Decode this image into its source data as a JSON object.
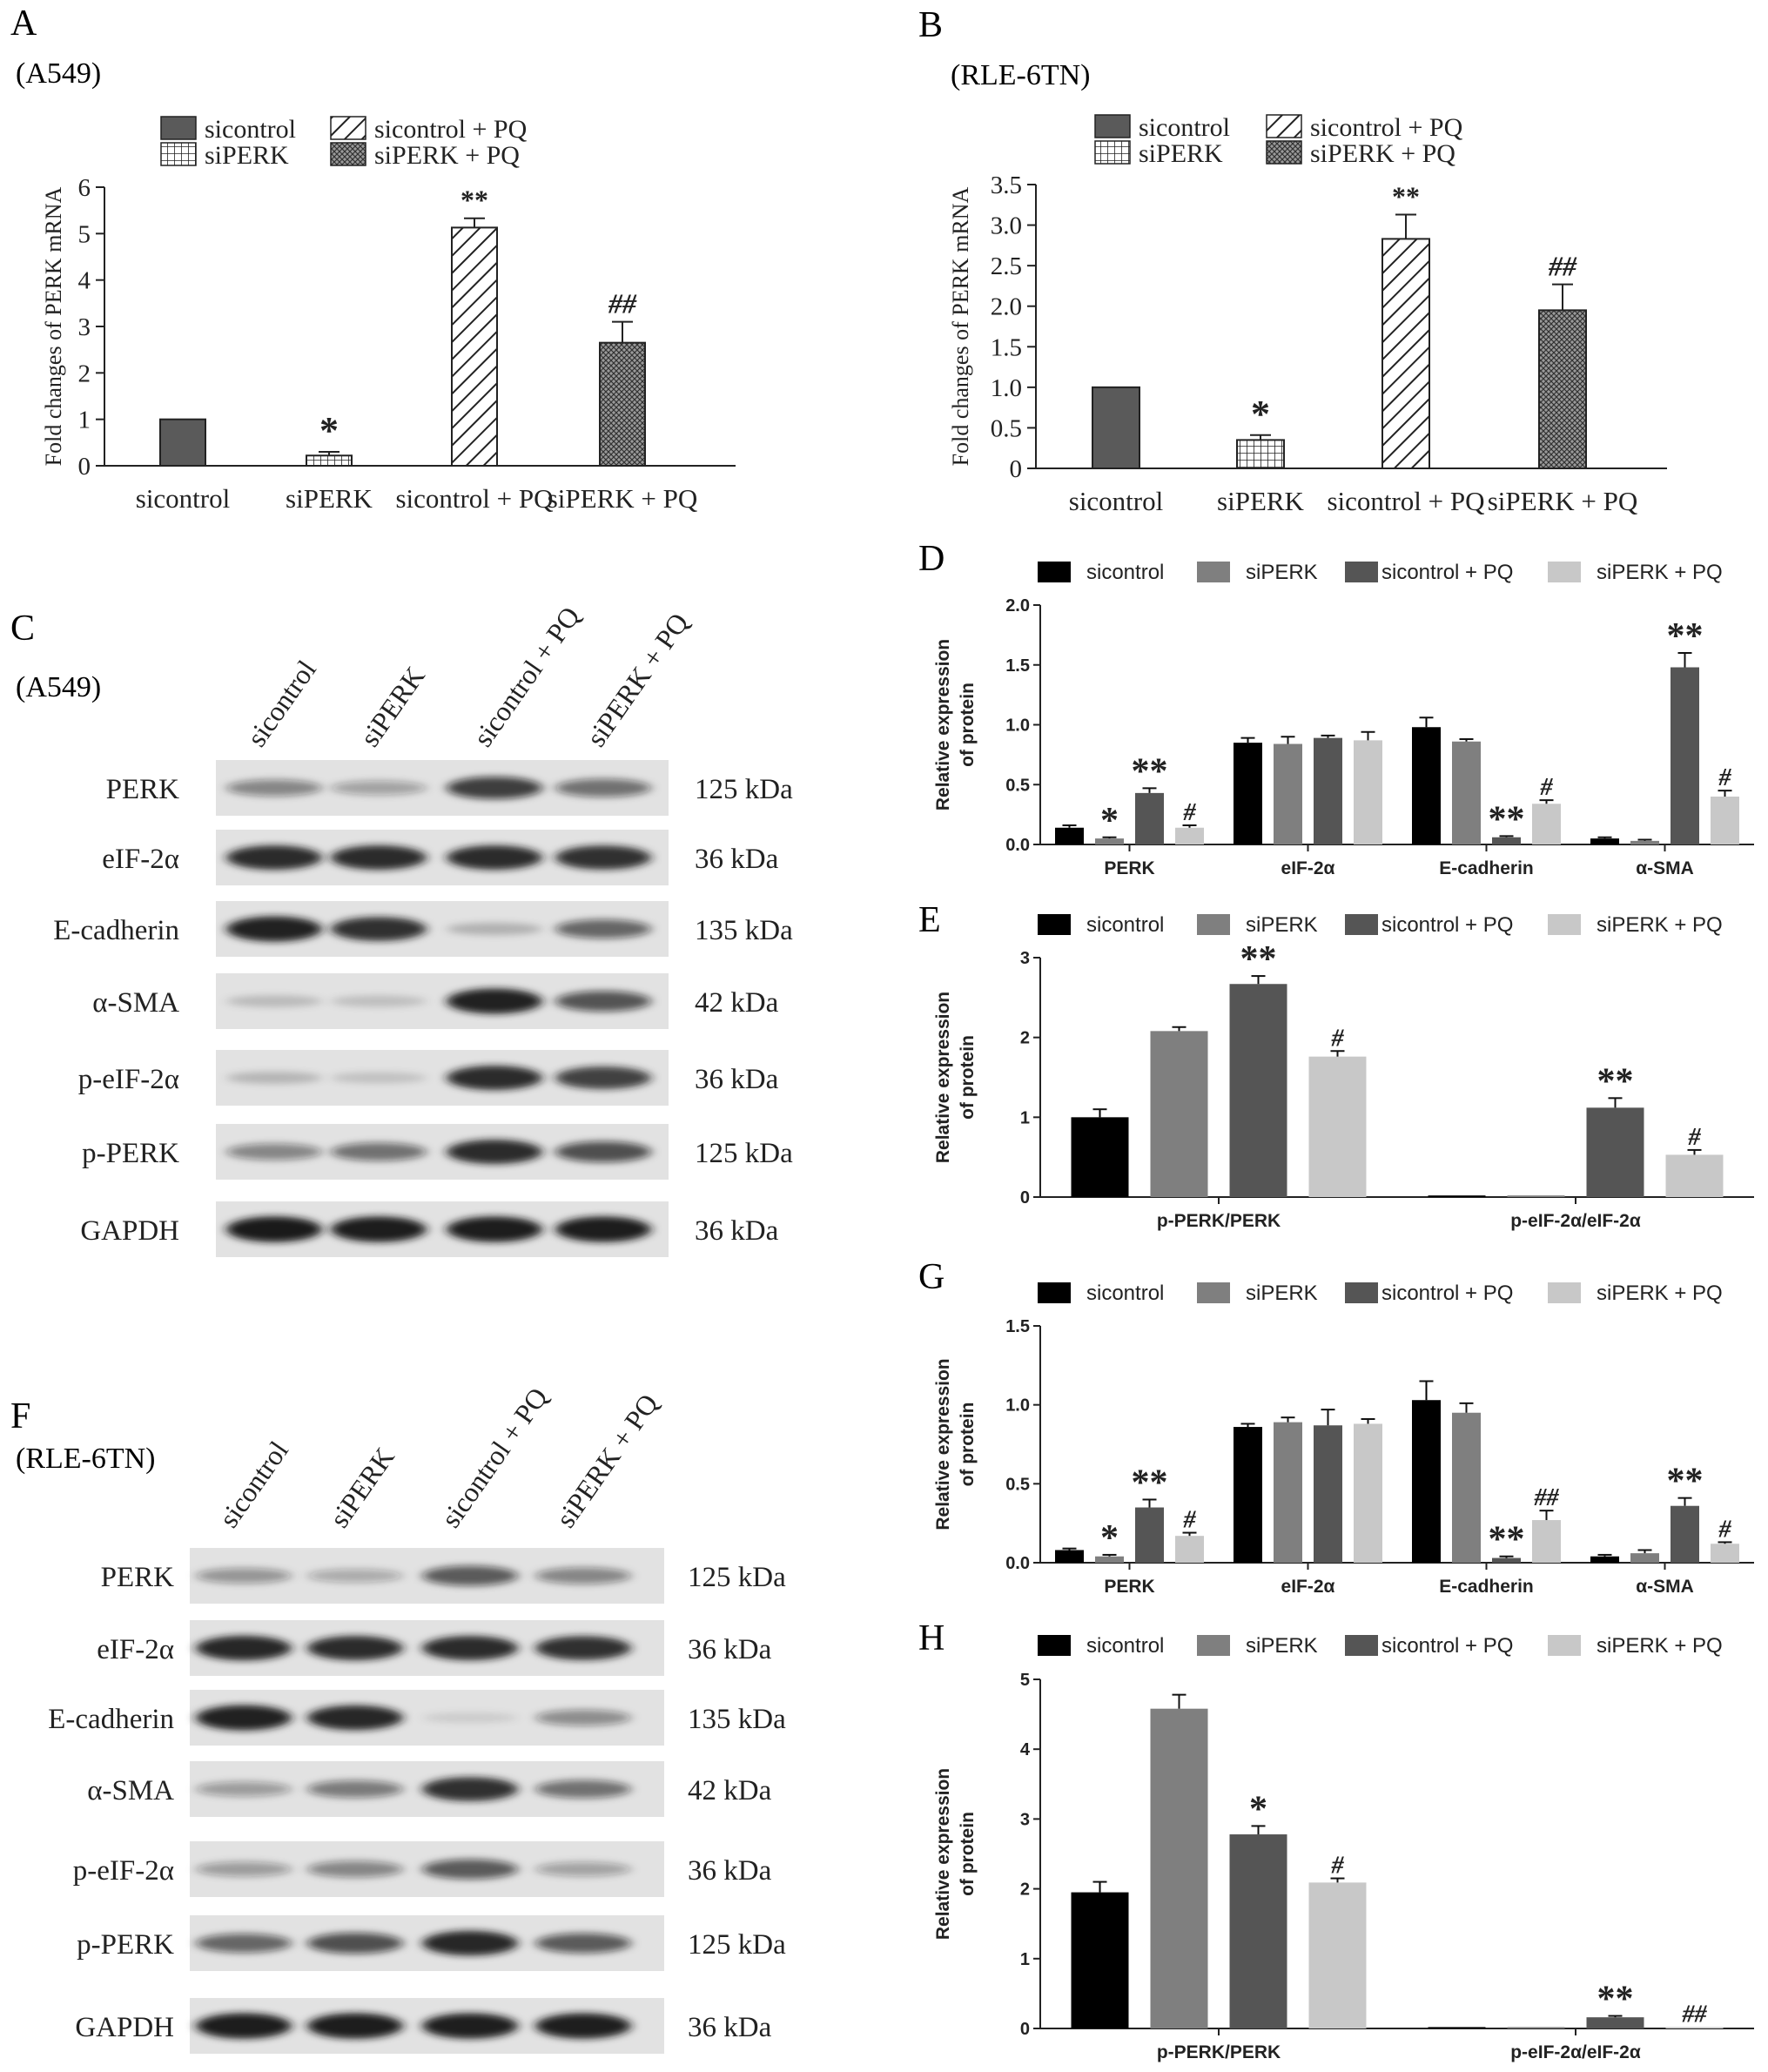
{
  "groups": [
    "sicontrol",
    "siPERK",
    "sicontrol + PQ",
    "siPERK + PQ"
  ],
  "styles": {
    "ink": "#222222",
    "bar_fills_bw": [
      "#5a5a5a",
      "#ffffff",
      "#ffffff",
      "#8c8c8c"
    ],
    "bar_fills_color": [
      "#000000",
      "#7f7f7f",
      "#555555",
      "#c8c8c8"
    ],
    "band_bg": "#e2e2e2",
    "band_dark": "#151515"
  },
  "panels": {
    "A": {
      "letter": "A",
      "cell": "(A549)"
    },
    "B": {
      "letter": "B",
      "cell": "(RLE-6TN)"
    },
    "C": {
      "letter": "C",
      "cell": "(A549)"
    },
    "D": {
      "letter": "D"
    },
    "E": {
      "letter": "E"
    },
    "F": {
      "letter": "F",
      "cell": "(RLE-6TN)"
    },
    "G": {
      "letter": "G"
    },
    "H": {
      "letter": "H"
    }
  },
  "chart_data": [
    {
      "panel": "A",
      "type": "bar",
      "categories": [
        "sicontrol",
        "siPERK",
        "sicontrol + PQ",
        "siPERK + PQ"
      ],
      "values": [
        1.0,
        0.22,
        5.13,
        2.65
      ],
      "errors": [
        0.0,
        0.08,
        0.2,
        0.45
      ],
      "annotations": [
        "",
        "*",
        "**",
        "##"
      ],
      "patterns": [
        "solid",
        "grid",
        "hatch",
        "cross"
      ],
      "ylabel": "Fold changes of PERK mRNA",
      "ylim": [
        0,
        6
      ],
      "yticks": [
        "0",
        "1",
        "2",
        "3",
        "4",
        "5",
        "6"
      ],
      "legend": [
        "sicontrol",
        "siPERK",
        "sicontrol + PQ",
        "siPERK + PQ"
      ],
      "legend_position": "top-left"
    },
    {
      "panel": "B",
      "type": "bar",
      "categories": [
        "sicontrol",
        "siPERK",
        "sicontrol + PQ",
        "siPERK + PQ"
      ],
      "values": [
        1.0,
        0.35,
        2.83,
        1.95
      ],
      "errors": [
        0.0,
        0.06,
        0.3,
        0.32
      ],
      "annotations": [
        "",
        "*",
        "**",
        "##"
      ],
      "patterns": [
        "solid",
        "grid",
        "hatch",
        "cross"
      ],
      "ylabel": "Fold changes of PERK mRNA",
      "ylim": [
        0,
        3.5
      ],
      "yticks": [
        "0",
        "0.5",
        "1.0",
        "1.5",
        "2.0",
        "2.5",
        "3.0",
        "3.5"
      ],
      "legend": [
        "sicontrol",
        "siPERK",
        "sicontrol + PQ",
        "siPERK + PQ"
      ],
      "legend_position": "top-left"
    },
    {
      "panel": "D",
      "type": "bar",
      "categories": [
        "PERK",
        "eIF-2α",
        "E-cadherin",
        "α-SMA"
      ],
      "series": [
        {
          "name": "sicontrol",
          "values": [
            0.14,
            0.85,
            0.98,
            0.05
          ],
          "errors": [
            0.02,
            0.04,
            0.08,
            0.01
          ],
          "annotations": [
            "",
            "",
            "",
            ""
          ]
        },
        {
          "name": "siPERK",
          "values": [
            0.05,
            0.84,
            0.86,
            0.03
          ],
          "errors": [
            0.01,
            0.06,
            0.02,
            0.01
          ],
          "annotations": [
            "*",
            "",
            "",
            ""
          ]
        },
        {
          "name": "sicontrol + PQ",
          "values": [
            0.43,
            0.89,
            0.06,
            1.48
          ],
          "errors": [
            0.04,
            0.02,
            0.01,
            0.12
          ],
          "annotations": [
            "**",
            "",
            "**",
            "**"
          ]
        },
        {
          "name": "siPERK + PQ",
          "values": [
            0.14,
            0.87,
            0.34,
            0.4
          ],
          "errors": [
            0.02,
            0.07,
            0.03,
            0.05
          ],
          "annotations": [
            "#",
            "",
            "#",
            "#"
          ]
        }
      ],
      "ylabel": [
        "Relative expression",
        "of protein"
      ],
      "ylim": [
        0,
        2.0
      ],
      "yticks": [
        "0.0",
        "0.5",
        "1.0",
        "1.5",
        "2.0"
      ],
      "legend_position": "top"
    },
    {
      "panel": "E",
      "type": "bar",
      "categories": [
        "p-PERK/PERK",
        "p-eIF-2α/eIF-2α"
      ],
      "series": [
        {
          "name": "sicontrol",
          "values": [
            1.0,
            0.02
          ],
          "errors": [
            0.1,
            0.0
          ],
          "annotations": [
            "",
            ""
          ]
        },
        {
          "name": "siPERK",
          "values": [
            2.08,
            0.02
          ],
          "errors": [
            0.05,
            0.0
          ],
          "annotations": [
            "",
            ""
          ]
        },
        {
          "name": "sicontrol + PQ",
          "values": [
            2.67,
            1.12
          ],
          "errors": [
            0.1,
            0.12
          ],
          "annotations": [
            "**",
            "**"
          ]
        },
        {
          "name": "siPERK + PQ",
          "values": [
            1.76,
            0.53
          ],
          "errors": [
            0.07,
            0.06
          ],
          "annotations": [
            "#",
            "#"
          ]
        }
      ],
      "ylabel": [
        "Relative expression",
        "of protein"
      ],
      "ylim": [
        0,
        3
      ],
      "yticks": [
        "0",
        "1",
        "2",
        "3"
      ],
      "legend_position": "top"
    },
    {
      "panel": "G",
      "type": "bar",
      "categories": [
        "PERK",
        "eIF-2α",
        "E-cadherin",
        "α-SMA"
      ],
      "series": [
        {
          "name": "sicontrol",
          "values": [
            0.08,
            0.86,
            1.03,
            0.04
          ],
          "errors": [
            0.01,
            0.02,
            0.12,
            0.01
          ],
          "annotations": [
            "",
            "",
            "",
            ""
          ]
        },
        {
          "name": "siPERK",
          "values": [
            0.04,
            0.89,
            0.95,
            0.06
          ],
          "errors": [
            0.01,
            0.03,
            0.06,
            0.02
          ],
          "annotations": [
            "*",
            "",
            "",
            ""
          ]
        },
        {
          "name": "sicontrol + PQ",
          "values": [
            0.35,
            0.87,
            0.03,
            0.36
          ],
          "errors": [
            0.05,
            0.1,
            0.01,
            0.05
          ],
          "annotations": [
            "**",
            "",
            "**",
            "**"
          ]
        },
        {
          "name": "siPERK + PQ",
          "values": [
            0.17,
            0.88,
            0.27,
            0.12
          ],
          "errors": [
            0.02,
            0.03,
            0.06,
            0.01
          ],
          "annotations": [
            "#",
            "",
            "##",
            "#"
          ]
        }
      ],
      "ylabel": [
        "Relative expression",
        "of protein"
      ],
      "ylim": [
        0,
        1.5
      ],
      "yticks": [
        "0.0",
        "0.5",
        "1.0",
        "1.5"
      ],
      "legend_position": "top"
    },
    {
      "panel": "H",
      "type": "bar",
      "categories": [
        "p-PERK/PERK",
        "p-eIF-2α/eIF-2α"
      ],
      "series": [
        {
          "name": "sicontrol",
          "values": [
            1.95,
            0.02
          ],
          "errors": [
            0.15,
            0.0
          ],
          "annotations": [
            "",
            ""
          ]
        },
        {
          "name": "siPERK",
          "values": [
            4.58,
            0.02
          ],
          "errors": [
            0.2,
            0.0
          ],
          "annotations": [
            "",
            ""
          ]
        },
        {
          "name": "sicontrol + PQ",
          "values": [
            2.78,
            0.16
          ],
          "errors": [
            0.12,
            0.02
          ],
          "annotations": [
            "*",
            "**"
          ]
        },
        {
          "name": "siPERK + PQ",
          "values": [
            2.09,
            0.02
          ],
          "errors": [
            0.06,
            0.0
          ],
          "annotations": [
            "#",
            "##"
          ]
        }
      ],
      "ylabel": [
        "Relative expression",
        "of protein"
      ],
      "ylim": [
        0,
        5
      ],
      "yticks": [
        "0",
        "1",
        "2",
        "3",
        "4",
        "5"
      ],
      "legend_position": "top"
    }
  ],
  "blots": {
    "C": {
      "lanes": [
        "sicontrol",
        "siPERK",
        "sicontrol + PQ",
        "siPERK + PQ"
      ],
      "rows": [
        {
          "protein": "PERK",
          "size": "125 kDa",
          "intensity": [
            0.45,
            0.32,
            0.78,
            0.55
          ]
        },
        {
          "protein": "eIF-2α",
          "size": "36 kDa",
          "intensity": [
            0.9,
            0.9,
            0.9,
            0.88
          ]
        },
        {
          "protein": "E-cadherin",
          "size": "135 kDa",
          "intensity": [
            0.95,
            0.88,
            0.22,
            0.6
          ]
        },
        {
          "protein": "α-SMA",
          "size": "42 kDa",
          "intensity": [
            0.18,
            0.16,
            0.95,
            0.68
          ]
        },
        {
          "protein": "p-eIF-2α",
          "size": "36 kDa",
          "intensity": [
            0.2,
            0.15,
            0.9,
            0.8
          ]
        },
        {
          "protein": "p-PERK",
          "size": "125 kDa",
          "intensity": [
            0.45,
            0.55,
            0.9,
            0.7
          ]
        },
        {
          "protein": "GAPDH",
          "size": "36 kDa",
          "intensity": [
            0.98,
            0.97,
            0.97,
            0.97
          ]
        }
      ]
    },
    "F": {
      "lanes": [
        "sicontrol",
        "siPERK",
        "sicontrol + PQ",
        "siPERK + PQ"
      ],
      "rows": [
        {
          "protein": "PERK",
          "size": "125 kDa",
          "intensity": [
            0.38,
            0.28,
            0.65,
            0.45
          ]
        },
        {
          "protein": "eIF-2α",
          "size": "36 kDa",
          "intensity": [
            0.92,
            0.9,
            0.9,
            0.88
          ]
        },
        {
          "protein": "E-cadherin",
          "size": "135 kDa",
          "intensity": [
            0.95,
            0.92,
            0.1,
            0.42
          ]
        },
        {
          "protein": "α-SMA",
          "size": "42 kDa",
          "intensity": [
            0.35,
            0.5,
            0.88,
            0.55
          ]
        },
        {
          "protein": "p-eIF-2α",
          "size": "36 kDa",
          "intensity": [
            0.35,
            0.45,
            0.65,
            0.32
          ]
        },
        {
          "protein": "p-PERK",
          "size": "125 kDa",
          "intensity": [
            0.6,
            0.7,
            0.92,
            0.65
          ]
        },
        {
          "protein": "GAPDH",
          "size": "36 kDa",
          "intensity": [
            0.97,
            0.97,
            0.96,
            0.96
          ]
        }
      ]
    }
  }
}
